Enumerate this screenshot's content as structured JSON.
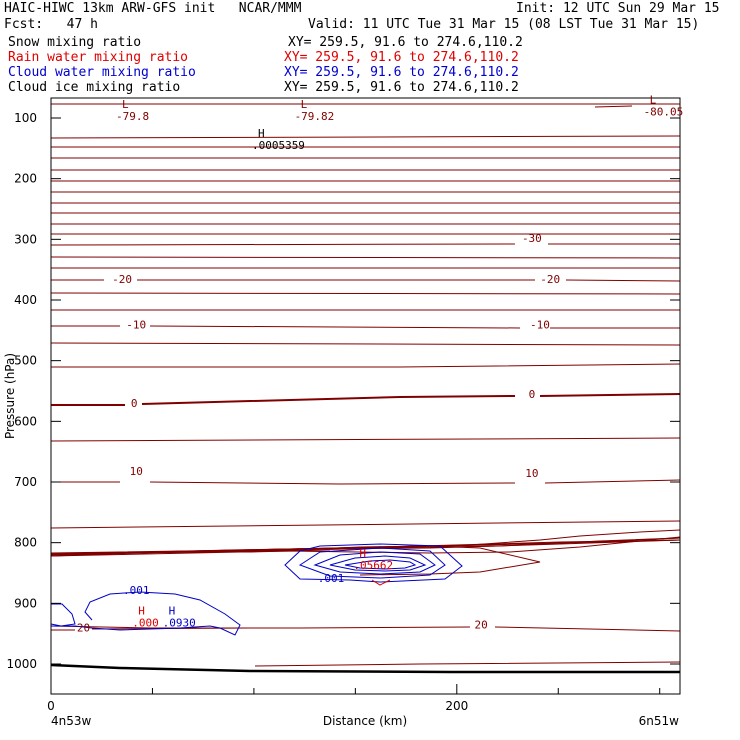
{
  "header": {
    "line1_left": "HAIC-HIWC 13km ARW-GFS init   NCAR/MMM",
    "line1_right": "Init: 12 UTC Sun 29 Mar 15",
    "line2_left": "Fcst:   47 h",
    "line2_right": "Valid: 11 UTC Tue 31 Mar 15 (08 LST Tue 31 Mar 15)",
    "fields": [
      {
        "name": "Snow mixing ratio",
        "xy": "XY= 259.5, 91.6 to 274.6,110.2",
        "color": "#000000"
      },
      {
        "name": "Rain water mixing ratio",
        "xy": "XY= 259.5, 91.6 to 274.6,110.2",
        "color": "#e00000"
      },
      {
        "name": "Cloud water mixing ratio",
        "xy": "XY= 259.5, 91.6 to 274.6,110.2",
        "color": "#0000d0"
      },
      {
        "name": "Cloud ice mixing ratio",
        "xy": "XY= 259.5, 91.6 to 274.6,110.2",
        "color": "#000000"
      }
    ]
  },
  "chart_data": {
    "type": "line",
    "xlabel": "Distance (km)",
    "ylabel": "Pressure (hPa)",
    "xlim": [
      0,
      310
    ],
    "ylim": [
      1050,
      60
    ],
    "x_ticks": [
      0,
      200
    ],
    "x_minor_ticks": [
      50,
      100,
      150,
      250,
      300
    ],
    "y_ticks": [
      100,
      200,
      300,
      400,
      500,
      600,
      700,
      800,
      900,
      1000
    ],
    "left_endpoint": "4n53w",
    "right_endpoint": "6n51w",
    "colors": {
      "temperature": "#800000",
      "cloud_water": "#0000c8",
      "rain": "#e00000",
      "terrain": "#000000"
    },
    "isotherm_labels": [
      {
        "text": "-30",
        "x": 237,
        "p": 298
      },
      {
        "text": "-20",
        "x": 35,
        "p": 365
      },
      {
        "text": "-20",
        "x": 246,
        "p": 365
      },
      {
        "text": "-10",
        "x": 42,
        "p": 440
      },
      {
        "text": "-10",
        "x": 241,
        "p": 440
      },
      {
        "text": "0",
        "x": 41,
        "p": 570
      },
      {
        "text": "0",
        "x": 237,
        "p": 555
      },
      {
        "text": "10",
        "x": 42,
        "p": 682
      },
      {
        "text": "10",
        "x": 237,
        "p": 685
      },
      {
        "text": "20",
        "x": 16,
        "p": 940
      },
      {
        "text": "20",
        "x": 212,
        "p": 935
      }
    ],
    "extrema": [
      {
        "kind": "L",
        "value": "-79.8",
        "x": 35,
        "p": 90,
        "color": "#800000"
      },
      {
        "kind": "L",
        "value": "-79.82",
        "x": 123,
        "p": 90,
        "color": "#800000"
      },
      {
        "kind": "L",
        "value": "-80.05",
        "x": 295,
        "p": 83,
        "color": "#800000"
      },
      {
        "kind": "H",
        "value": ".0005359",
        "x": 102,
        "p": 138,
        "color": "#000000"
      },
      {
        "kind": "H",
        "value": ".000",
        "x": 43,
        "p": 925,
        "color": "#e00000"
      },
      {
        "kind": "H",
        "value": ".0930",
        "x": 58,
        "p": 925,
        "color": "#0000c8"
      },
      {
        "kind": "H",
        "value": ".05662",
        "x": 152,
        "p": 830,
        "color": "#e00000"
      }
    ],
    "cloud_water_labels": [
      {
        "text": ".001",
        "x": 42,
        "p": 878
      },
      {
        "text": ".001",
        "x": 138,
        "p": 858
      }
    ]
  }
}
